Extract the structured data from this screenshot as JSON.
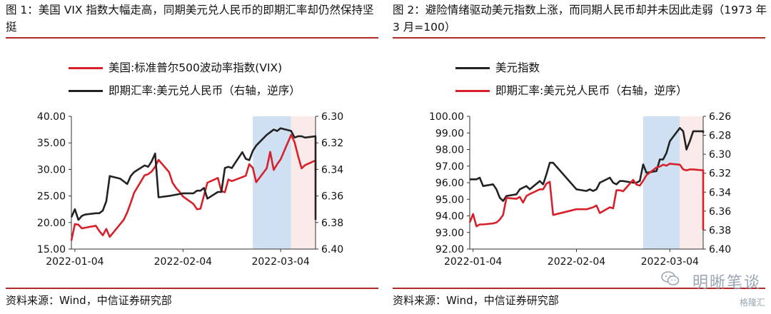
{
  "left": {
    "title": "图 1：美国 VIX 指数大幅走高，同期美元兑人民币的即期汇率却仍然保持坚挺",
    "source": "资料来源：Wind，中信证券研究部",
    "chart_data": {
      "type": "line",
      "x_tick_labels": [
        "2022-01-04",
        "2022-02-04",
        "2022-03-04"
      ],
      "x_range": [
        "2022-01-03",
        "2022-03-14"
      ],
      "y_left": {
        "min": 15,
        "max": 40,
        "ticks": [
          "15.00",
          "20.00",
          "25.00",
          "30.00",
          "35.00",
          "40.00"
        ]
      },
      "y_right": {
        "min": 6.3,
        "max": 6.4,
        "inverted": true,
        "ticks": [
          "6.30",
          "6.32",
          "6.34",
          "6.36",
          "6.38",
          "6.40"
        ]
      },
      "shaded_regions": [
        {
          "from": "2022-02-24",
          "to": "2022-03-07",
          "color": "#cfe0f3"
        },
        {
          "from": "2022-03-07",
          "to": "2022-03-14",
          "color": "#fbeaea"
        }
      ],
      "series": [
        {
          "name": "美国:标准普尔500波动率指数(VIX)",
          "axis": "left",
          "color": "#d8202a",
          "points": [
            [
              "2022-01-03",
              16.6
            ],
            [
              "2022-01-04",
              19.7
            ],
            [
              "2022-01-05",
              19.6
            ],
            [
              "2022-01-06",
              18.9
            ],
            [
              "2022-01-10",
              19.4
            ],
            [
              "2022-01-11",
              18.4
            ],
            [
              "2022-01-12",
              17.6
            ],
            [
              "2022-01-13",
              18.8
            ],
            [
              "2022-01-14",
              17.3
            ],
            [
              "2022-01-18",
              20.5
            ],
            [
              "2022-01-19",
              21.9
            ],
            [
              "2022-01-20",
              23.7
            ],
            [
              "2022-01-21",
              25.6
            ],
            [
              "2022-01-24",
              28.9
            ],
            [
              "2022-01-25",
              29.1
            ],
            [
              "2022-01-26",
              29.6
            ],
            [
              "2022-01-27",
              30.5
            ],
            [
              "2022-01-28",
              31.8
            ],
            [
              "2022-01-31",
              29.5
            ],
            [
              "2022-02-01",
              27.5
            ],
            [
              "2022-02-02",
              26.5
            ],
            [
              "2022-02-03",
              25.8
            ],
            [
              "2022-02-04",
              24.9
            ],
            [
              "2022-02-07",
              23.5
            ],
            [
              "2022-02-08",
              22.5
            ],
            [
              "2022-02-09",
              22.6
            ],
            [
              "2022-02-10",
              25.1
            ],
            [
              "2022-02-11",
              27.5
            ],
            [
              "2022-02-14",
              28.4
            ],
            [
              "2022-02-15",
              25.9
            ],
            [
              "2022-02-16",
              25.7
            ],
            [
              "2022-02-17",
              28.1
            ],
            [
              "2022-02-18",
              27.8
            ],
            [
              "2022-02-22",
              28.8
            ],
            [
              "2022-02-23",
              31.0
            ],
            [
              "2022-02-24",
              30.3
            ],
            [
              "2022-02-25",
              27.6
            ],
            [
              "2022-02-28",
              30.2
            ],
            [
              "2022-03-01",
              33.3
            ],
            [
              "2022-03-02",
              29.9
            ],
            [
              "2022-03-03",
              31.0
            ],
            [
              "2022-03-04",
              31.9
            ],
            [
              "2022-03-07",
              36.5
            ],
            [
              "2022-03-08",
              35.1
            ],
            [
              "2022-03-09",
              32.5
            ],
            [
              "2022-03-10",
              30.2
            ],
            [
              "2022-03-11",
              30.8
            ],
            [
              "2022-03-14",
              31.7
            ],
            [
              "2022-03-15",
              29.8
            ]
          ]
        },
        {
          "name": "即期汇率:美元兑人民币（右轴，逆序）",
          "axis": "right",
          "color": "#222222",
          "points": [
            [
              "2022-01-03",
              6.376
            ],
            [
              "2022-01-04",
              6.37
            ],
            [
              "2022-01-05",
              6.378
            ],
            [
              "2022-01-06",
              6.375
            ],
            [
              "2022-01-07",
              6.374
            ],
            [
              "2022-01-10",
              6.373
            ],
            [
              "2022-01-11",
              6.373
            ],
            [
              "2022-01-12",
              6.371
            ],
            [
              "2022-01-13",
              6.364
            ],
            [
              "2022-01-14",
              6.345
            ],
            [
              "2022-01-17",
              6.347
            ],
            [
              "2022-01-18",
              6.349
            ],
            [
              "2022-01-19",
              6.351
            ],
            [
              "2022-01-20",
              6.345
            ],
            [
              "2022-01-21",
              6.342
            ],
            [
              "2022-01-24",
              6.337
            ],
            [
              "2022-01-25",
              6.338
            ],
            [
              "2022-01-26",
              6.334
            ],
            [
              "2022-01-27",
              6.328
            ],
            [
              "2022-01-28",
              6.361
            ],
            [
              "2022-01-31",
              6.36
            ],
            [
              "2022-02-04",
              6.358
            ],
            [
              "2022-02-07",
              6.358
            ],
            [
              "2022-02-08",
              6.356
            ],
            [
              "2022-02-09",
              6.356
            ],
            [
              "2022-02-10",
              6.354
            ],
            [
              "2022-02-11",
              6.362
            ],
            [
              "2022-02-14",
              6.357
            ],
            [
              "2022-02-15",
              6.357
            ],
            [
              "2022-02-16",
              6.339
            ],
            [
              "2022-02-17",
              6.338
            ],
            [
              "2022-02-18",
              6.339
            ],
            [
              "2022-02-21",
              6.327
            ],
            [
              "2022-02-22",
              6.332
            ],
            [
              "2022-02-23",
              6.333
            ],
            [
              "2022-02-24",
              6.326
            ],
            [
              "2022-02-25",
              6.322
            ],
            [
              "2022-02-28",
              6.314
            ],
            [
              "2022-03-01",
              6.312
            ],
            [
              "2022-03-02",
              6.31
            ],
            [
              "2022-03-03",
              6.311
            ],
            [
              "2022-03-04",
              6.309
            ],
            [
              "2022-03-07",
              6.311
            ],
            [
              "2022-03-08",
              6.316
            ],
            [
              "2022-03-09",
              6.315
            ],
            [
              "2022-03-10",
              6.315
            ],
            [
              "2022-03-11",
              6.316
            ],
            [
              "2022-03-14",
              6.315
            ],
            [
              "2022-03-15",
              6.327
            ],
            [
              "2022-03-16",
              6.343
            ],
            [
              "2022-03-17",
              6.353
            ],
            [
              "2022-03-18",
              6.378
            ]
          ]
        }
      ],
      "legend_position": "top-left"
    }
  },
  "right": {
    "title": "图 2：避险情绪驱动美元指数上涨，而同期人民币却并未因此走弱（1973 年 3 月=100）",
    "source": "资料来源：Wind，中信证券研究部",
    "chart_data": {
      "type": "line",
      "x_tick_labels": [
        "2022-01-04",
        "2022-02-04",
        "2022-03-04"
      ],
      "x_range": [
        "2022-01-03",
        "2022-03-14"
      ],
      "y_left": {
        "min": 92,
        "max": 100,
        "ticks": [
          "92.00",
          "93.00",
          "94.00",
          "95.00",
          "96.00",
          "97.00",
          "98.00",
          "99.00",
          "100.00"
        ]
      },
      "y_right": {
        "min": 6.26,
        "max": 6.4,
        "inverted": true,
        "ticks": [
          "6.26",
          "6.28",
          "6.30",
          "6.32",
          "6.34",
          "6.36",
          "6.38",
          "6.40"
        ]
      },
      "shaded_regions": [
        {
          "from": "2022-02-24",
          "to": "2022-03-07",
          "color": "#cfe0f3"
        },
        {
          "from": "2022-03-07",
          "to": "2022-03-14",
          "color": "#fbeaea"
        }
      ],
      "series": [
        {
          "name": "美元指数",
          "axis": "left",
          "color": "#222222",
          "points": [
            [
              "2022-01-03",
              96.2
            ],
            [
              "2022-01-04",
              96.2
            ],
            [
              "2022-01-05",
              96.2
            ],
            [
              "2022-01-06",
              96.3
            ],
            [
              "2022-01-07",
              95.8
            ],
            [
              "2022-01-10",
              95.9
            ],
            [
              "2022-01-11",
              95.6
            ],
            [
              "2022-01-12",
              95.1
            ],
            [
              "2022-01-13",
              94.9
            ],
            [
              "2022-01-14",
              95.2
            ],
            [
              "2022-01-17",
              95.3
            ],
            [
              "2022-01-18",
              95.6
            ],
            [
              "2022-01-19",
              95.7
            ],
            [
              "2022-01-20",
              95.8
            ],
            [
              "2022-01-21",
              95.6
            ],
            [
              "2022-01-24",
              96.1
            ],
            [
              "2022-01-25",
              95.9
            ],
            [
              "2022-01-26",
              96.5
            ],
            [
              "2022-01-27",
              97.2
            ],
            [
              "2022-01-28",
              97.2
            ],
            [
              "2022-02-04",
              95.6
            ],
            [
              "2022-02-07",
              95.5
            ],
            [
              "2022-02-08",
              95.6
            ],
            [
              "2022-02-09",
              95.5
            ],
            [
              "2022-02-10",
              95.6
            ],
            [
              "2022-02-11",
              96.0
            ],
            [
              "2022-02-14",
              96.3
            ],
            [
              "2022-02-15",
              96.0
            ],
            [
              "2022-02-16",
              95.9
            ],
            [
              "2022-02-17",
              96.1
            ],
            [
              "2022-02-18",
              96.1
            ],
            [
              "2022-02-21",
              96.0
            ],
            [
              "2022-02-22",
              96.0
            ],
            [
              "2022-02-23",
              96.1
            ],
            [
              "2022-02-24",
              97.1
            ],
            [
              "2022-02-25",
              96.6
            ],
            [
              "2022-02-28",
              96.7
            ],
            [
              "2022-03-01",
              97.4
            ],
            [
              "2022-03-02",
              97.4
            ],
            [
              "2022-03-03",
              97.8
            ],
            [
              "2022-03-04",
              98.5
            ],
            [
              "2022-03-07",
              99.3
            ],
            [
              "2022-03-08",
              99.1
            ],
            [
              "2022-03-09",
              98.0
            ],
            [
              "2022-03-10",
              98.5
            ],
            [
              "2022-03-11",
              99.1
            ],
            [
              "2022-03-14",
              99.1
            ],
            [
              "2022-03-15",
              99.0
            ]
          ]
        },
        {
          "name": "即期汇率:美元兑人民币（右轴，逆序）",
          "axis": "right",
          "color": "#d8202a",
          "points": [
            [
              "2022-01-03",
              6.372
            ],
            [
              "2022-01-04",
              6.363
            ],
            [
              "2022-01-05",
              6.376
            ],
            [
              "2022-01-06",
              6.374
            ],
            [
              "2022-01-07",
              6.374
            ],
            [
              "2022-01-10",
              6.373
            ],
            [
              "2022-01-11",
              6.372
            ],
            [
              "2022-01-12",
              6.369
            ],
            [
              "2022-01-13",
              6.364
            ],
            [
              "2022-01-14",
              6.346
            ],
            [
              "2022-01-17",
              6.347
            ],
            [
              "2022-01-18",
              6.345
            ],
            [
              "2022-01-19",
              6.351
            ],
            [
              "2022-01-20",
              6.344
            ],
            [
              "2022-01-21",
              6.342
            ],
            [
              "2022-01-24",
              6.337
            ],
            [
              "2022-01-25",
              6.337
            ],
            [
              "2022-01-26",
              6.331
            ],
            [
              "2022-01-27",
              6.329
            ],
            [
              "2022-01-28",
              6.364
            ],
            [
              "2022-02-04",
              6.358
            ],
            [
              "2022-02-07",
              6.358
            ],
            [
              "2022-02-08",
              6.357
            ],
            [
              "2022-02-09",
              6.356
            ],
            [
              "2022-02-10",
              6.354
            ],
            [
              "2022-02-11",
              6.362
            ],
            [
              "2022-02-14",
              6.356
            ],
            [
              "2022-02-15",
              6.357
            ],
            [
              "2022-02-16",
              6.338
            ],
            [
              "2022-02-17",
              6.338
            ],
            [
              "2022-02-18",
              6.339
            ],
            [
              "2022-02-21",
              6.327
            ],
            [
              "2022-02-22",
              6.332
            ],
            [
              "2022-02-23",
              6.333
            ],
            [
              "2022-02-24",
              6.328
            ],
            [
              "2022-02-25",
              6.322
            ],
            [
              "2022-02-28",
              6.314
            ],
            [
              "2022-03-01",
              6.313
            ],
            [
              "2022-03-02",
              6.311
            ],
            [
              "2022-03-03",
              6.312
            ],
            [
              "2022-03-04",
              6.31
            ],
            [
              "2022-03-07",
              6.311
            ],
            [
              "2022-03-08",
              6.316
            ],
            [
              "2022-03-09",
              6.317
            ],
            [
              "2022-03-10",
              6.316
            ],
            [
              "2022-03-11",
              6.316
            ],
            [
              "2022-03-14",
              6.317
            ],
            [
              "2022-03-15",
              6.328
            ],
            [
              "2022-03-16",
              6.343
            ],
            [
              "2022-03-17",
              6.36
            ],
            [
              "2022-03-18",
              6.38
            ]
          ]
        }
      ],
      "legend_position": "top-left"
    }
  },
  "watermark": {
    "text": "明晰笔谈",
    "brand": "格隆汇"
  }
}
